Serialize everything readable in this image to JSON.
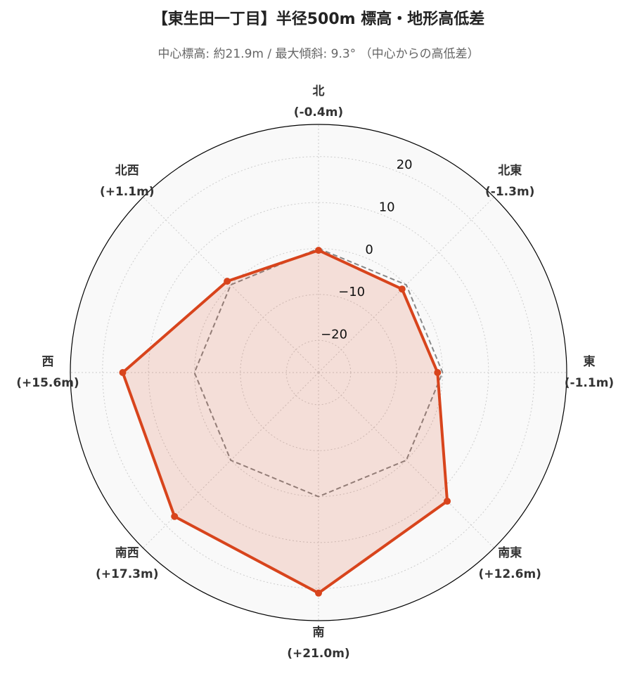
{
  "chart_data": {
    "type": "radar",
    "title": "【東生田一丁目】半径500m 標高・地形高低差",
    "subtitle": "中心標高: 約21.9m / 最大傾斜: 9.3° （中心からの高低差）",
    "categories": [
      "北",
      "北東",
      "東",
      "南東",
      "南",
      "南西",
      "西",
      "北西"
    ],
    "values": [
      -0.4,
      -1.3,
      -1.1,
      12.6,
      21.0,
      17.3,
      15.6,
      1.1
    ],
    "value_labels": [
      "(-0.4m)",
      "(-1.3m)",
      "(-1.1m)",
      "(+12.6m)",
      "(+21.0m)",
      "(+17.3m)",
      "(+15.6m)",
      "(+1.1m)"
    ],
    "color": "#d8441c",
    "rlim": [
      -27,
      27
    ],
    "rticks": [
      {
        "value": -20,
        "label": "−20"
      },
      {
        "value": -10,
        "label": "−10"
      },
      0,
      10,
      20
    ],
    "grid": true
  }
}
